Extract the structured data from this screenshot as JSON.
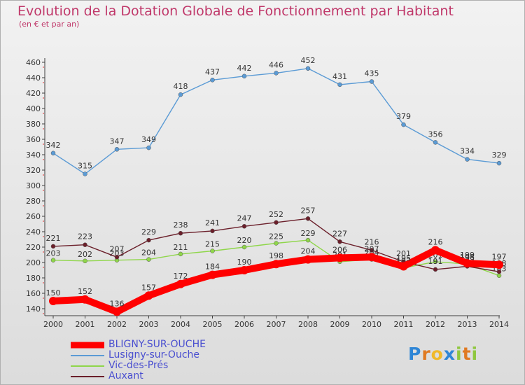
{
  "header": {
    "title": "Evolution de la Dotation Globale de Fonctionnement par Habitant",
    "subtitle": "(en € et par an)"
  },
  "logo": {
    "text": "Proxiti"
  },
  "colors": {
    "title": "#c0386a",
    "axis": "#404040",
    "grid_marks": "#e03030",
    "legend_text": "#4a4fd0"
  },
  "chart_data": {
    "type": "line",
    "title": "Evolution de la Dotation Globale de Fonctionnement par Habitant",
    "subtitle": "(en € et par an)",
    "x": [
      "2000",
      "2001",
      "2002",
      "2003",
      "2004",
      "2005",
      "2006",
      "2007",
      "2008",
      "2009",
      "2010",
      "2011",
      "2012",
      "2013",
      "2014"
    ],
    "ylim": [
      120,
      460
    ],
    "yticks": [
      140,
      160,
      180,
      200,
      220,
      240,
      260,
      280,
      300,
      320,
      340,
      360,
      380,
      400,
      420,
      440,
      460
    ],
    "legend_position": "bottom-left",
    "series": [
      {
        "name": "BLIGNY-SUR-OUCHE",
        "color": "#ff0000",
        "width": 10,
        "values": [
          150,
          152,
          136,
          157,
          172,
          184,
          190,
          198,
          204,
          206,
          207,
          195,
          216,
          199,
          197
        ]
      },
      {
        "name": "Lusigny-sur-Ouche",
        "color": "#5b9bd5",
        "width": 1.4,
        "values": [
          342,
          315,
          347,
          349,
          418,
          437,
          442,
          446,
          452,
          431,
          435,
          379,
          356,
          334,
          329
        ]
      },
      {
        "name": "Vic-des-Prés",
        "color": "#8fd64a",
        "width": 1.4,
        "values": [
          203,
          202,
          203,
          204,
          211,
          215,
          220,
          225,
          229,
          201,
          204,
          193,
          201,
          198,
          183
        ]
      },
      {
        "name": "Auxant",
        "color": "#6b1f2a",
        "width": 1.4,
        "values": [
          221,
          223,
          207,
          229,
          238,
          241,
          247,
          252,
          257,
          227,
          216,
          201,
          191,
          195,
          188
        ]
      }
    ]
  }
}
